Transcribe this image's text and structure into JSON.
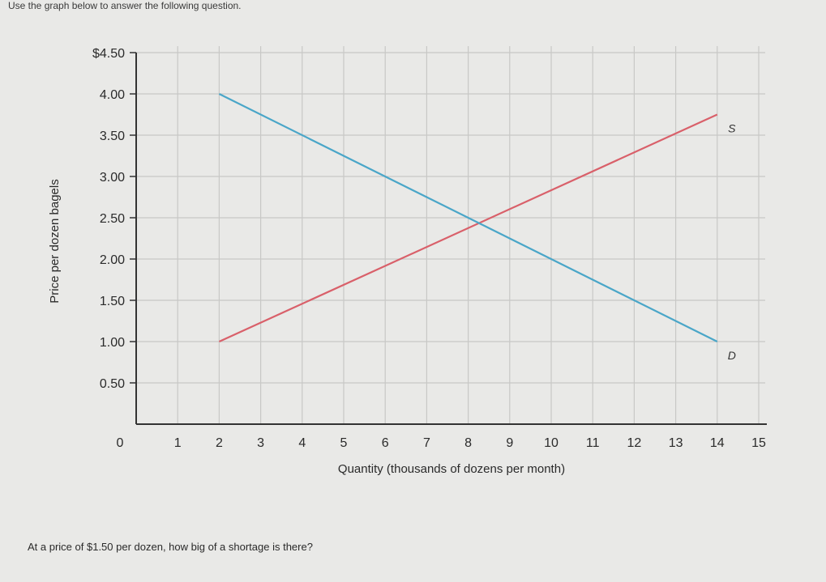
{
  "instruction": "Use the graph below to answer the following question.",
  "question": "At a price of $1.50 per dozen, how big of a shortage is there?",
  "chart_data": {
    "type": "line",
    "xlabel": "Quantity (thousands of dozens per month)",
    "ylabel": "Price per dozen bagels",
    "xlim": [
      0,
      15
    ],
    "ylim": [
      0,
      4.5
    ],
    "grid": true,
    "x_ticks": [
      {
        "value": 0,
        "label": "0"
      },
      {
        "value": 1,
        "label": "1"
      },
      {
        "value": 2,
        "label": "2"
      },
      {
        "value": 3,
        "label": "3"
      },
      {
        "value": 4,
        "label": "4"
      },
      {
        "value": 5,
        "label": "5"
      },
      {
        "value": 6,
        "label": "6"
      },
      {
        "value": 7,
        "label": "7"
      },
      {
        "value": 8,
        "label": "8"
      },
      {
        "value": 9,
        "label": "9"
      },
      {
        "value": 10,
        "label": "10"
      },
      {
        "value": 11,
        "label": "11"
      },
      {
        "value": 12,
        "label": "12"
      },
      {
        "value": 13,
        "label": "13"
      },
      {
        "value": 14,
        "label": "14"
      },
      {
        "value": 15,
        "label": "15"
      }
    ],
    "y_ticks": [
      {
        "value": 0.5,
        "label": "0.50"
      },
      {
        "value": 1.0,
        "label": "1.00"
      },
      {
        "value": 1.5,
        "label": "1.50"
      },
      {
        "value": 2.0,
        "label": "2.00"
      },
      {
        "value": 2.5,
        "label": "2.50"
      },
      {
        "value": 3.0,
        "label": "3.00"
      },
      {
        "value": 3.5,
        "label": "3.50"
      },
      {
        "value": 4.0,
        "label": "4.00"
      },
      {
        "value": 4.5,
        "label": "$4.50"
      }
    ],
    "series": [
      {
        "name": "S",
        "color": "#d9606a",
        "points": [
          [
            2,
            1.0
          ],
          [
            14,
            3.75
          ]
        ]
      },
      {
        "name": "D",
        "color": "#4aa6c8",
        "points": [
          [
            2,
            4.0
          ],
          [
            14,
            1.0
          ]
        ]
      }
    ]
  }
}
